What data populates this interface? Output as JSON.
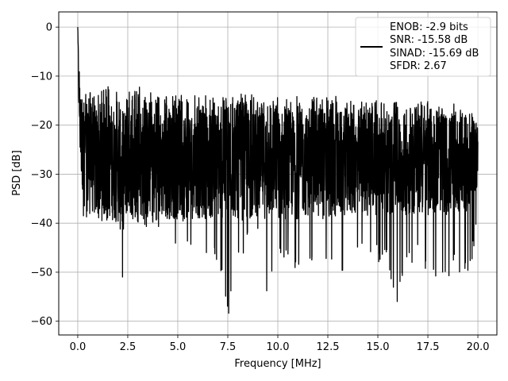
{
  "chart_data": {
    "type": "line",
    "title": "",
    "xlabel": "Frequency [MHz]",
    "ylabel": "PSD [dB]",
    "xlim": [
      -0.95,
      20.95
    ],
    "ylim": [
      -62.8,
      3.1
    ],
    "xticks": [
      0.0,
      2.5,
      5.0,
      7.5,
      10.0,
      12.5,
      15.0,
      17.5,
      20.0
    ],
    "xtick_labels": [
      "0.0",
      "2.5",
      "5.0",
      "7.5",
      "10.0",
      "12.5",
      "15.0",
      "17.5",
      "20.0"
    ],
    "yticks": [
      0,
      -10,
      -20,
      -30,
      -40,
      -50,
      -60
    ],
    "ytick_labels": [
      "0",
      "−10",
      "−20",
      "−30",
      "−40",
      "−50",
      "−60"
    ],
    "grid": true,
    "legend": {
      "placement": "upper right",
      "entries": [
        "ENOB: -2.9 bits",
        "SNR: -15.58 dB",
        "SINAD: -15.69 dB",
        "SFDR: 2.67"
      ]
    },
    "series": [
      {
        "color": "#000000",
        "description_of_shape": "dense noisy PSD trace",
        "x": [
          0.0,
          0.02,
          0.05,
          0.08,
          0.12,
          0.18,
          0.25,
          0.33,
          0.4,
          0.5,
          0.6,
          0.8,
          1.0,
          1.5,
          2.0,
          2.2,
          2.5,
          3.0,
          3.5,
          4.0,
          4.5,
          4.75,
          5.0,
          5.5,
          6.0,
          6.05,
          6.5,
          7.0,
          7.5,
          8.0,
          8.5,
          9.0,
          9.4,
          10.0,
          10.5,
          11.0,
          11.3,
          12.0,
          12.5,
          13.0,
          13.3,
          14.0,
          14.5,
          15.0,
          15.5,
          15.9,
          16.5,
          17.0,
          17.5,
          18.0,
          18.5,
          19.0,
          19.2,
          19.5,
          20.0
        ],
        "y": [
          0,
          -5,
          -12,
          -15,
          -20,
          -22,
          -24,
          -25,
          -26,
          -27,
          -27,
          -27,
          -28,
          -27,
          -28,
          -30,
          -27,
          -27,
          -28,
          -28,
          -28,
          -28,
          -28,
          -28,
          -28,
          -28,
          -28,
          -28,
          -28,
          -28,
          -28,
          -28,
          -28,
          -28,
          -28,
          -28,
          -28,
          -28,
          -28,
          -28,
          -28,
          -28,
          -28,
          -28,
          -28,
          -28,
          -28,
          -28,
          -28,
          -28,
          -28,
          -28,
          -28,
          -28,
          -26
        ],
        "upper_envelope_y": [
          0,
          -2,
          -5,
          -8,
          -10,
          -11,
          -12,
          -12,
          -13,
          -13,
          -13,
          -13,
          -13,
          -12,
          -13,
          -14,
          -13,
          -12,
          -13,
          -14,
          -14,
          -14,
          -13,
          -14,
          -14,
          -14,
          -14,
          -14,
          -14,
          -14,
          -13,
          -15,
          -14,
          -14,
          -14,
          -14,
          -15,
          -14,
          -14,
          -14,
          -15,
          -15,
          -15,
          -15,
          -15,
          -15,
          -15,
          -15,
          -15,
          -16,
          -15,
          -16,
          -16,
          -16,
          -18
        ],
        "lower_envelope_y": [
          -15,
          -25,
          -30,
          -33,
          -36,
          -40,
          -42,
          -39,
          -40,
          -40,
          -39,
          -39,
          -39,
          -40,
          -40,
          -54,
          -40,
          -40,
          -41,
          -43,
          -40,
          -48,
          -42,
          -45,
          -43,
          -59,
          -46,
          -48,
          -60,
          -48,
          -45,
          -44,
          -58,
          -48,
          -48,
          -50,
          -53,
          -48,
          -50,
          -50,
          -51,
          -46,
          -47,
          -48,
          -48,
          -58,
          -48,
          -48,
          -50,
          -51,
          -51,
          -50,
          -52,
          -52,
          -42
        ]
      }
    ]
  }
}
